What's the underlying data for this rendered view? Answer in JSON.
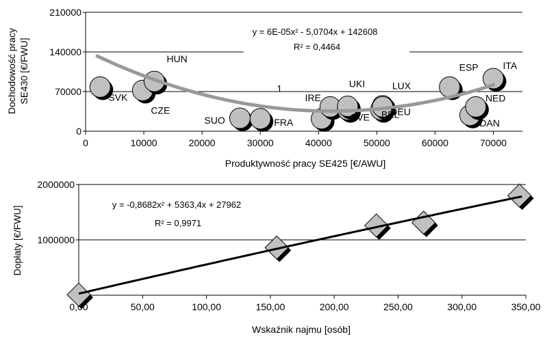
{
  "chart_data": [
    {
      "type": "scatter",
      "xlabel": "Produktywność pracy SE425 [€/AWU]",
      "ylabel_line1": "Dochodowość pracy",
      "ylabel_line2": "SE430 [€/FWU]",
      "xlim": [
        0,
        75000
      ],
      "ylim": [
        0,
        210000
      ],
      "x_ticks": [
        0,
        10000,
        20000,
        30000,
        40000,
        50000,
        60000,
        70000
      ],
      "x_tick_labels": [
        "0",
        "10000",
        "20000",
        "30000",
        "40000",
        "50000",
        "60000",
        "70000"
      ],
      "y_ticks": [
        0,
        70000,
        140000,
        210000
      ],
      "y_tick_labels": [
        "0",
        "70000",
        "140000",
        "210000"
      ],
      "grid": "horizontal",
      "points": [
        {
          "label": "SVK",
          "x": 2500,
          "y": 78000
        },
        {
          "label": "CZE",
          "x": 9800,
          "y": 72000
        },
        {
          "label": "HUN",
          "x": 11800,
          "y": 88000
        },
        {
          "label": "SUO",
          "x": 26500,
          "y": 23000
        },
        {
          "label": "FRA",
          "x": 30000,
          "y": 22000
        },
        {
          "label": "IRE",
          "x": 40500,
          "y": 22000
        },
        {
          "label": "1",
          "x": 42000,
          "y": 43000
        },
        {
          "label": "SVE",
          "x": 45000,
          "y": 38000
        },
        {
          "label": "UKI",
          "x": 45000,
          "y": 44000
        },
        {
          "label": "DEU",
          "x": 50700,
          "y": 38000
        },
        {
          "label": "LUX",
          "x": 51000,
          "y": 45000
        },
        {
          "label": "BEL",
          "x": 51000,
          "y": 43000
        },
        {
          "label": "ESP",
          "x": 62500,
          "y": 78000
        },
        {
          "label": "DAN",
          "x": 66000,
          "y": 28000
        },
        {
          "label": "NED",
          "x": 67000,
          "y": 43000
        },
        {
          "label": "ITA",
          "x": 70000,
          "y": 93000
        }
      ],
      "trend_type": "poly2",
      "trend_coeffs": [
        6e-05,
        -5.0704,
        142608
      ],
      "trend_color": "#999999",
      "equation_text": "y = 6E-05x² - 5,0704x + 142608",
      "r2_text": "R² = 0,4464"
    },
    {
      "type": "scatter",
      "xlabel": "Wskaźnik najmu [osób]",
      "ylabel": "Dopłaty [€/FWU]",
      "xlim": [
        0,
        350
      ],
      "ylim": [
        0,
        2000000
      ],
      "x_ticks": [
        0,
        50,
        100,
        150,
        200,
        250,
        300,
        350
      ],
      "x_tick_labels": [
        "0,00",
        "50,00",
        "100,00",
        "150,00",
        "200,00",
        "250,00",
        "300,00",
        "350,00"
      ],
      "y_ticks": [
        0,
        1000000,
        2000000
      ],
      "y_tick_labels": [
        "0",
        "1000000",
        "2000000"
      ],
      "grid": "horizontal",
      "points": [
        {
          "x": 0,
          "y": 10000
        },
        {
          "x": 155,
          "y": 860000
        },
        {
          "x": 233,
          "y": 1260000
        },
        {
          "x": 270,
          "y": 1310000
        },
        {
          "x": 345,
          "y": 1800000
        }
      ],
      "trend_type": "poly2",
      "trend_coeffs": [
        -0.8682,
        5363.4,
        27962
      ],
      "trend_color": "#000000",
      "equation_text": "y = -0,8682x² + 5363,4x + 27962",
      "r2_text": "R² = 0,9971"
    }
  ]
}
